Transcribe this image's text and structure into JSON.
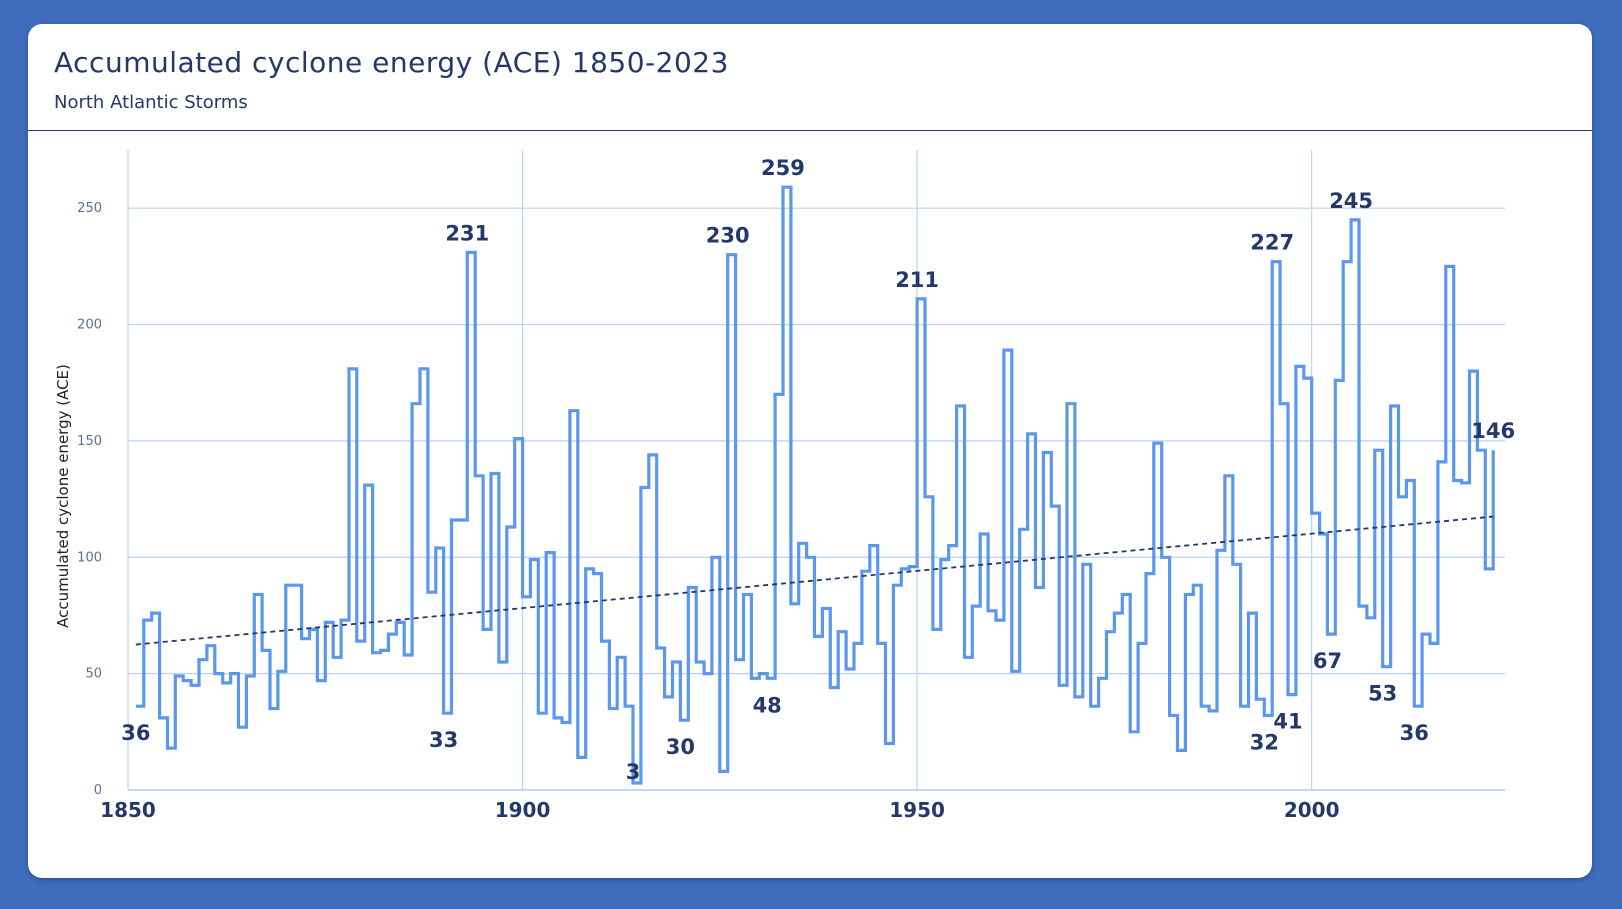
{
  "chart_data": {
    "type": "line",
    "style": "step",
    "title": "Accumulated cyclone energy (ACE) 1850-2023",
    "subtitle": "North Atlantic Storms",
    "ylabel": "Accumulated cyclone energy (ACE)",
    "xlabel": "",
    "xlim": [
      1850,
      2024
    ],
    "ylim": [
      0,
      275
    ],
    "x_ticks": [
      1850,
      1900,
      1950,
      2000
    ],
    "y_ticks": [
      0,
      50,
      100,
      150,
      200,
      250
    ],
    "grid": true,
    "series": [
      {
        "values": [
          [
            1851,
            36
          ],
          [
            1852,
            73
          ],
          [
            1853,
            76
          ],
          [
            1854,
            31
          ],
          [
            1855,
            18
          ],
          [
            1856,
            49
          ],
          [
            1857,
            47
          ],
          [
            1858,
            45
          ],
          [
            1859,
            56
          ],
          [
            1860,
            62
          ],
          [
            1861,
            50
          ],
          [
            1862,
            46
          ],
          [
            1863,
            50
          ],
          [
            1864,
            27
          ],
          [
            1865,
            49
          ],
          [
            1866,
            84
          ],
          [
            1867,
            60
          ],
          [
            1868,
            35
          ],
          [
            1869,
            51
          ],
          [
            1870,
            88
          ],
          [
            1871,
            88
          ],
          [
            1872,
            65
          ],
          [
            1873,
            69
          ],
          [
            1874,
            47
          ],
          [
            1875,
            72
          ],
          [
            1876,
            57
          ],
          [
            1877,
            73
          ],
          [
            1878,
            181
          ],
          [
            1879,
            64
          ],
          [
            1880,
            131
          ],
          [
            1881,
            59
          ],
          [
            1882,
            60
          ],
          [
            1883,
            67
          ],
          [
            1884,
            72
          ],
          [
            1885,
            58
          ],
          [
            1886,
            166
          ],
          [
            1887,
            181
          ],
          [
            1888,
            85
          ],
          [
            1889,
            104
          ],
          [
            1890,
            33
          ],
          [
            1891,
            116
          ],
          [
            1892,
            116
          ],
          [
            1893,
            231
          ],
          [
            1894,
            135
          ],
          [
            1895,
            69
          ],
          [
            1896,
            136
          ],
          [
            1897,
            55
          ],
          [
            1898,
            113
          ],
          [
            1899,
            151
          ],
          [
            1900,
            83
          ],
          [
            1901,
            99
          ],
          [
            1902,
            33
          ],
          [
            1903,
            102
          ],
          [
            1904,
            31
          ],
          [
            1905,
            29
          ],
          [
            1906,
            163
          ],
          [
            1907,
            14
          ],
          [
            1908,
            95
          ],
          [
            1909,
            93
          ],
          [
            1910,
            64
          ],
          [
            1911,
            35
          ],
          [
            1912,
            57
          ],
          [
            1913,
            36
          ],
          [
            1914,
            3
          ],
          [
            1915,
            130
          ],
          [
            1916,
            144
          ],
          [
            1917,
            61
          ],
          [
            1918,
            40
          ],
          [
            1919,
            55
          ],
          [
            1920,
            30
          ],
          [
            1921,
            87
          ],
          [
            1922,
            55
          ],
          [
            1923,
            50
          ],
          [
            1924,
            100
          ],
          [
            1925,
            8
          ],
          [
            1926,
            230
          ],
          [
            1927,
            56
          ],
          [
            1928,
            84
          ],
          [
            1929,
            48
          ],
          [
            1930,
            50
          ],
          [
            1931,
            48
          ],
          [
            1932,
            170
          ],
          [
            1933,
            259
          ],
          [
            1934,
            80
          ],
          [
            1935,
            106
          ],
          [
            1936,
            100
          ],
          [
            1937,
            66
          ],
          [
            1938,
            78
          ],
          [
            1939,
            44
          ],
          [
            1940,
            68
          ],
          [
            1941,
            52
          ],
          [
            1942,
            63
          ],
          [
            1943,
            94
          ],
          [
            1944,
            105
          ],
          [
            1945,
            63
          ],
          [
            1946,
            20
          ],
          [
            1947,
            88
          ],
          [
            1948,
            95
          ],
          [
            1949,
            96
          ],
          [
            1950,
            211
          ],
          [
            1951,
            126
          ],
          [
            1952,
            69
          ],
          [
            1953,
            99
          ],
          [
            1954,
            105
          ],
          [
            1955,
            165
          ],
          [
            1956,
            57
          ],
          [
            1957,
            79
          ],
          [
            1958,
            110
          ],
          [
            1959,
            77
          ],
          [
            1960,
            73
          ],
          [
            1961,
            189
          ],
          [
            1962,
            51
          ],
          [
            1963,
            112
          ],
          [
            1964,
            153
          ],
          [
            1965,
            87
          ],
          [
            1966,
            145
          ],
          [
            1967,
            122
          ],
          [
            1968,
            45
          ],
          [
            1969,
            166
          ],
          [
            1970,
            40
          ],
          [
            1971,
            97
          ],
          [
            1972,
            36
          ],
          [
            1973,
            48
          ],
          [
            1974,
            68
          ],
          [
            1975,
            76
          ],
          [
            1976,
            84
          ],
          [
            1977,
            25
          ],
          [
            1978,
            63
          ],
          [
            1979,
            93
          ],
          [
            1980,
            149
          ],
          [
            1981,
            100
          ],
          [
            1982,
            32
          ],
          [
            1983,
            17
          ],
          [
            1984,
            84
          ],
          [
            1985,
            88
          ],
          [
            1986,
            36
          ],
          [
            1987,
            34
          ],
          [
            1988,
            103
          ],
          [
            1989,
            135
          ],
          [
            1990,
            97
          ],
          [
            1991,
            36
          ],
          [
            1992,
            76
          ],
          [
            1993,
            39
          ],
          [
            1994,
            32
          ],
          [
            1995,
            227
          ],
          [
            1996,
            166
          ],
          [
            1997,
            41
          ],
          [
            1998,
            182
          ],
          [
            1999,
            177
          ],
          [
            2000,
            119
          ],
          [
            2001,
            110
          ],
          [
            2002,
            67
          ],
          [
            2003,
            176
          ],
          [
            2004,
            227
          ],
          [
            2005,
            245
          ],
          [
            2006,
            79
          ],
          [
            2007,
            74
          ],
          [
            2008,
            146
          ],
          [
            2009,
            53
          ],
          [
            2010,
            165
          ],
          [
            2011,
            126
          ],
          [
            2012,
            133
          ],
          [
            2013,
            36
          ],
          [
            2014,
            67
          ],
          [
            2015,
            63
          ],
          [
            2016,
            141
          ],
          [
            2017,
            225
          ],
          [
            2018,
            133
          ],
          [
            2019,
            132
          ],
          [
            2020,
            180
          ],
          [
            2021,
            146
          ],
          [
            2022,
            95
          ],
          [
            2023,
            146
          ]
        ]
      }
    ],
    "trendline": {
      "x": [
        1851,
        2023
      ],
      "y": [
        62.5,
        117.5
      ],
      "style": "dashed"
    },
    "data_labels": [
      {
        "x": 1851,
        "y": 36,
        "text": "36",
        "pos": "below"
      },
      {
        "x": 1890,
        "y": 33,
        "text": "33",
        "pos": "below"
      },
      {
        "x": 1893,
        "y": 231,
        "text": "231",
        "pos": "above"
      },
      {
        "x": 1914,
        "y": 3,
        "text": "3",
        "pos": "inside"
      },
      {
        "x": 1920,
        "y": 30,
        "text": "30",
        "pos": "below"
      },
      {
        "x": 1926,
        "y": 230,
        "text": "230",
        "pos": "above"
      },
      {
        "x": 1931,
        "y": 48,
        "text": "48",
        "pos": "below"
      },
      {
        "x": 1933,
        "y": 259,
        "text": "259",
        "pos": "above"
      },
      {
        "x": 1950,
        "y": 211,
        "text": "211",
        "pos": "above"
      },
      {
        "x": 1994,
        "y": 32,
        "text": "32",
        "pos": "below"
      },
      {
        "x": 1995,
        "y": 227,
        "text": "227",
        "pos": "above"
      },
      {
        "x": 1997,
        "y": 41,
        "text": "41",
        "pos": "below"
      },
      {
        "x": 2002,
        "y": 67,
        "text": "67",
        "pos": "below"
      },
      {
        "x": 2005,
        "y": 245,
        "text": "245",
        "pos": "above"
      },
      {
        "x": 2009,
        "y": 53,
        "text": "53",
        "pos": "below"
      },
      {
        "x": 2013,
        "y": 36,
        "text": "36",
        "pos": "below"
      },
      {
        "x": 2023,
        "y": 146,
        "text": "146",
        "pos": "above"
      }
    ],
    "colors": {
      "series": "#5b97ec",
      "trend": "#25386a",
      "grid": "#b9d2f3",
      "frame": "#3f6cbd"
    }
  }
}
